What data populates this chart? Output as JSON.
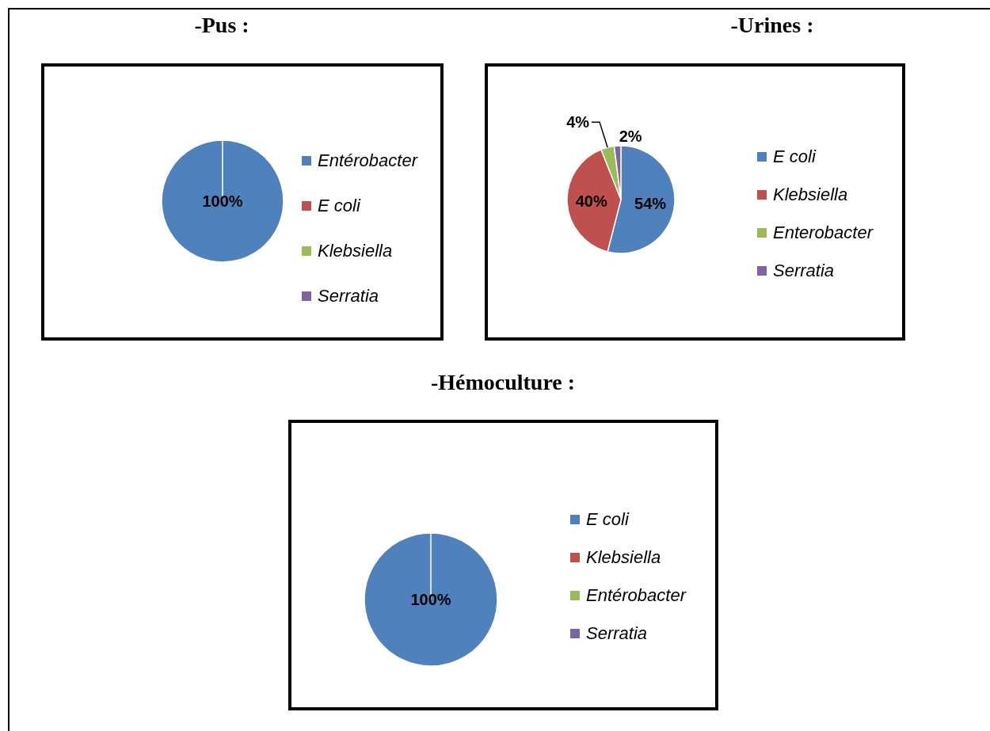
{
  "chart_data": [
    {
      "type": "pie",
      "title": "-Pus :",
      "categories": [
        "Entérobacter",
        "E coli",
        "Klebsiella",
        "Serratia"
      ],
      "values": [
        100,
        0,
        0,
        0
      ],
      "colors": [
        "#4f81bd",
        "#c0504d",
        "#9bbb59",
        "#8064a2"
      ],
      "value_labels": [
        "100%",
        null,
        null,
        null
      ],
      "legend": "right"
    },
    {
      "type": "pie",
      "title": "-Urines :",
      "categories": [
        "E coli",
        "Klebsiella",
        "Enterobacter",
        "Serratia"
      ],
      "values": [
        54,
        40,
        4,
        2
      ],
      "colors": [
        "#4f81bd",
        "#c0504d",
        "#9bbb59",
        "#8064a2"
      ],
      "value_labels": [
        "54%",
        "40%",
        "4%",
        "2%"
      ],
      "legend": "right"
    },
    {
      "type": "pie",
      "title": "-Hémoculture :",
      "categories": [
        "E coli",
        "Klebsiella",
        "Entérobacter",
        "Serratia"
      ],
      "values": [
        100,
        0,
        0,
        0
      ],
      "colors": [
        "#4f81bd",
        "#c0504d",
        "#9bbb59",
        "#8064a2"
      ],
      "value_labels": [
        "100%",
        null,
        null,
        null
      ],
      "legend": "right"
    }
  ]
}
